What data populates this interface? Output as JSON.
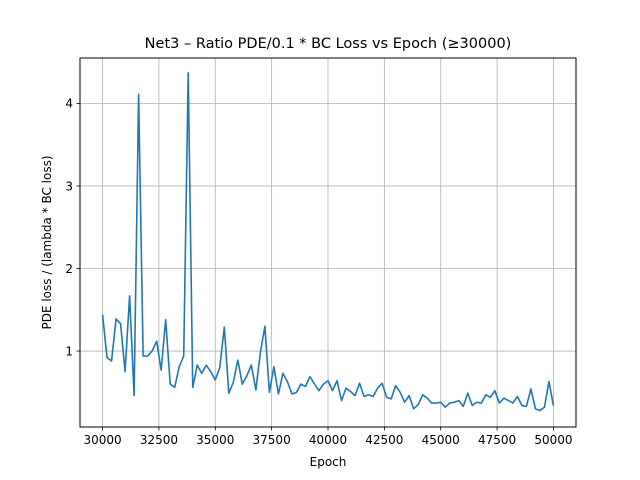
{
  "chart_data": {
    "type": "line",
    "title": "Net3 – Ratio PDE/0.1 * BC Loss vs Epoch (≥30000)",
    "xlabel": "Epoch",
    "ylabel": "PDE loss  /  (lambda * BC loss)",
    "xlim": [
      29000,
      51000
    ],
    "ylim": [
      0.08,
      4.55
    ],
    "xticks": [
      30000,
      32500,
      35000,
      37500,
      40000,
      42500,
      45000,
      47500,
      50000
    ],
    "xtick_labels": [
      "30000",
      "32500",
      "35000",
      "37500",
      "40000",
      "42500",
      "45000",
      "47500",
      "50000"
    ],
    "yticks": [
      1,
      2,
      3,
      4
    ],
    "ytick_labels": [
      "1",
      "2",
      "3",
      "4"
    ],
    "grid": true,
    "line_color": "#1f77b4",
    "series": [
      {
        "name": "",
        "x": [
          30000,
          30200,
          30400,
          30600,
          30800,
          31000,
          31200,
          31400,
          31600,
          31800,
          32000,
          32200,
          32400,
          32600,
          32800,
          33000,
          33200,
          33400,
          33600,
          33800,
          34000,
          34200,
          34400,
          34600,
          34800,
          35000,
          35200,
          35400,
          35600,
          35800,
          36000,
          36200,
          36400,
          36600,
          36800,
          37000,
          37200,
          37400,
          37600,
          37800,
          38000,
          38200,
          38400,
          38600,
          38800,
          39000,
          39200,
          39400,
          39600,
          39800,
          40000,
          40200,
          40400,
          40600,
          40800,
          41000,
          41200,
          41400,
          41600,
          41800,
          42000,
          42200,
          42400,
          42600,
          42800,
          43000,
          43200,
          43400,
          43600,
          43800,
          44000,
          44200,
          44400,
          44600,
          44800,
          45000,
          45200,
          45400,
          45600,
          45800,
          46000,
          46200,
          46400,
          46600,
          46800,
          47000,
          47200,
          47400,
          47600,
          47800,
          48000,
          48200,
          48400,
          48600,
          48800,
          49000,
          49200,
          49400,
          49600,
          49800,
          50000
        ],
        "y": [
          1.44,
          0.92,
          0.88,
          1.39,
          1.33,
          0.75,
          1.67,
          0.46,
          4.11,
          0.94,
          0.94,
          1.0,
          1.12,
          0.77,
          1.38,
          0.6,
          0.56,
          0.81,
          0.94,
          4.37,
          0.56,
          0.83,
          0.73,
          0.83,
          0.75,
          0.65,
          0.8,
          1.29,
          0.49,
          0.62,
          0.89,
          0.6,
          0.7,
          0.83,
          0.53,
          0.98,
          1.3,
          0.5,
          0.81,
          0.48,
          0.73,
          0.63,
          0.48,
          0.5,
          0.6,
          0.57,
          0.69,
          0.6,
          0.52,
          0.6,
          0.64,
          0.52,
          0.64,
          0.4,
          0.55,
          0.51,
          0.46,
          0.61,
          0.45,
          0.47,
          0.45,
          0.55,
          0.61,
          0.44,
          0.42,
          0.58,
          0.5,
          0.38,
          0.46,
          0.3,
          0.35,
          0.47,
          0.43,
          0.37,
          0.37,
          0.38,
          0.32,
          0.37,
          0.38,
          0.4,
          0.33,
          0.49,
          0.34,
          0.38,
          0.37,
          0.47,
          0.44,
          0.52,
          0.37,
          0.43,
          0.4,
          0.37,
          0.45,
          0.34,
          0.33,
          0.54,
          0.3,
          0.28,
          0.32,
          0.63,
          0.34
        ]
      }
    ]
  }
}
